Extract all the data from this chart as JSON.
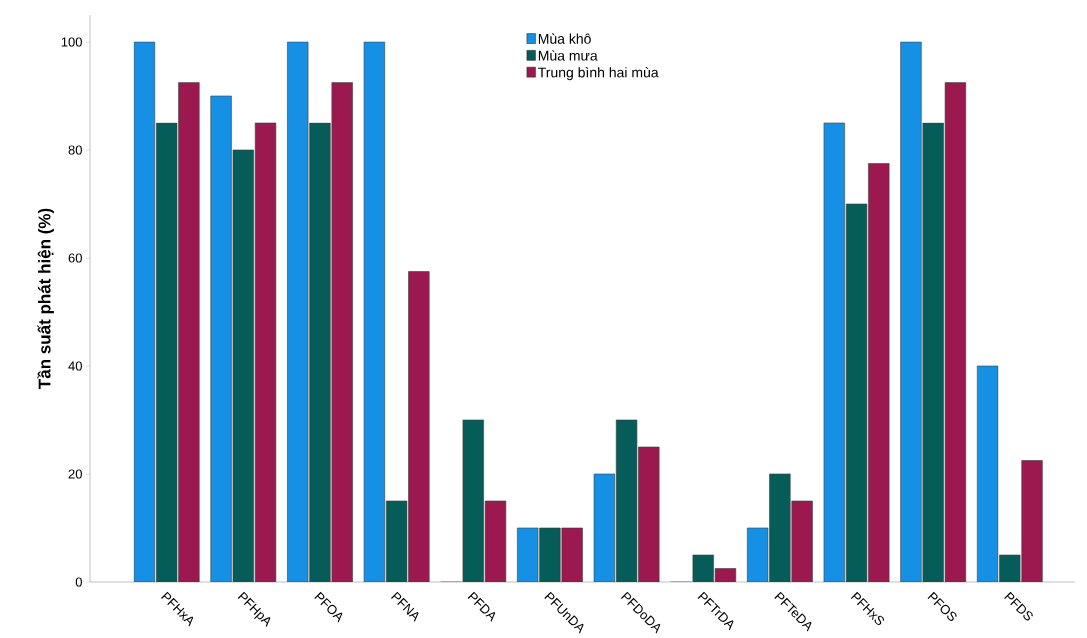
{
  "chart_data": {
    "type": "bar",
    "ylabel": "Tần suất phát hiện (%)",
    "categories": [
      "PFHxA",
      "PFHpA",
      "PFOA",
      "PFNA",
      "PFDA",
      "PFUnDA",
      "PFDoDA",
      "PFTrDA",
      "PFTeDA",
      "PFHxS",
      "PFOS",
      "PFDS"
    ],
    "series": [
      {
        "name": "Mùa khô",
        "color": "#1590e4",
        "values": [
          100,
          90,
          100,
          100,
          0,
          10,
          20,
          0,
          10,
          85,
          100,
          40
        ]
      },
      {
        "name": "Mùa mưa",
        "color": "#055c59",
        "values": [
          85,
          80,
          85,
          15,
          30,
          10,
          30,
          5,
          20,
          70,
          85,
          5
        ]
      },
      {
        "name": "Trung bình hai mùa",
        "color": "#9c194f",
        "values": [
          92.5,
          85,
          92.5,
          57.5,
          15,
          10,
          25,
          2.5,
          15,
          77.5,
          92.5,
          22.5
        ]
      }
    ],
    "ylim": [
      0,
      105
    ],
    "yticks": [
      0,
      20,
      40,
      60,
      80,
      100
    ],
    "grid": false,
    "legend": "top"
  }
}
